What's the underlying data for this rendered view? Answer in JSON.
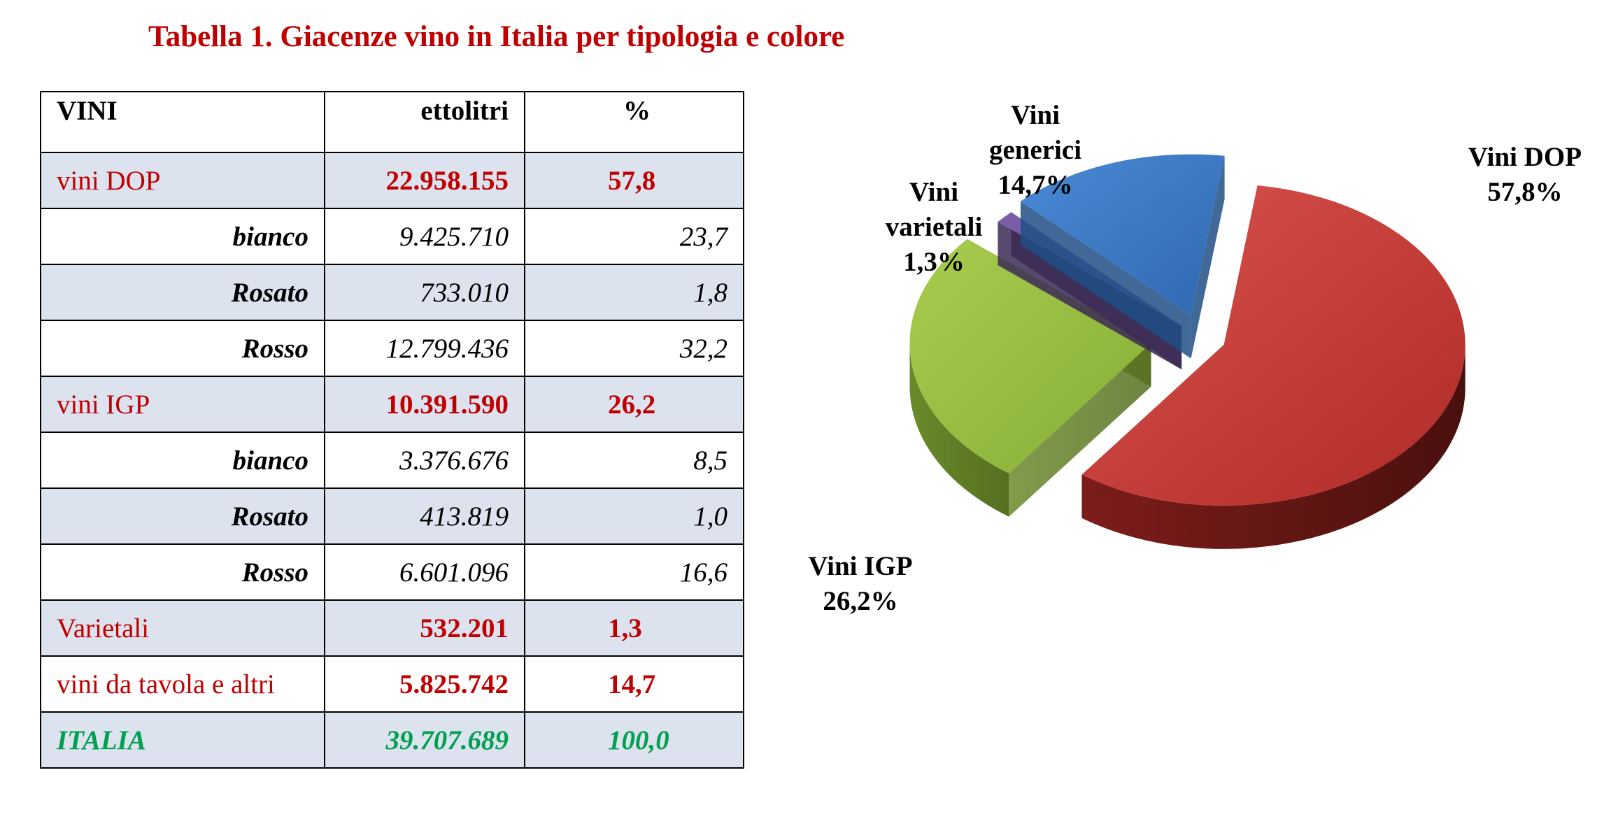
{
  "title": "Tabella 1. Giacenze vino in Italia per tipologia e colore",
  "table": {
    "headers": [
      "VINI",
      "ettolitri",
      "%"
    ],
    "rows": [
      {
        "kind": "main",
        "label": "vini DOP",
        "value": "22.958.155",
        "pct": "57,8"
      },
      {
        "kind": "sub",
        "label": "bianco",
        "value": "9.425.710",
        "pct": "23,7"
      },
      {
        "kind": "sub",
        "label": "Rosato",
        "value": "733.010",
        "pct": "1,8"
      },
      {
        "kind": "sub",
        "label": "Rosso",
        "value": "12.799.436",
        "pct": "32,2"
      },
      {
        "kind": "main",
        "label": "vini IGP",
        "value": "10.391.590",
        "pct": "26,2"
      },
      {
        "kind": "sub",
        "label": "bianco",
        "value": "3.376.676",
        "pct": "8,5"
      },
      {
        "kind": "sub",
        "label": "Rosato",
        "value": "413.819",
        "pct": "1,0"
      },
      {
        "kind": "sub",
        "label": "Rosso",
        "value": "6.601.096",
        "pct": "16,6"
      },
      {
        "kind": "main",
        "label": "Varietali",
        "value": "532.201",
        "pct": "1,3"
      },
      {
        "kind": "main",
        "label": "vini da tavola e altri",
        "value": "5.825.742",
        "pct": "14,7"
      },
      {
        "kind": "total",
        "label": "ITALIA",
        "value": "39.707.689",
        "pct": "100,0"
      }
    ]
  },
  "chart_data": {
    "type": "pie",
    "exploded": true,
    "style": "3d",
    "slices": [
      {
        "label": "Vini DOP",
        "value": 57.8,
        "value_label": "57,8%",
        "color": "#c0392b"
      },
      {
        "label": "Vini IGP",
        "value": 26.2,
        "value_label": "26,2%",
        "color": "#8ab43c"
      },
      {
        "label": "Vini varietali",
        "value": 1.3,
        "value_label": "1,3%",
        "color": "#7b5ea7"
      },
      {
        "label": "Vini generici",
        "value": 14.7,
        "value_label": "14,7%",
        "color": "#3a78c2"
      }
    ]
  }
}
